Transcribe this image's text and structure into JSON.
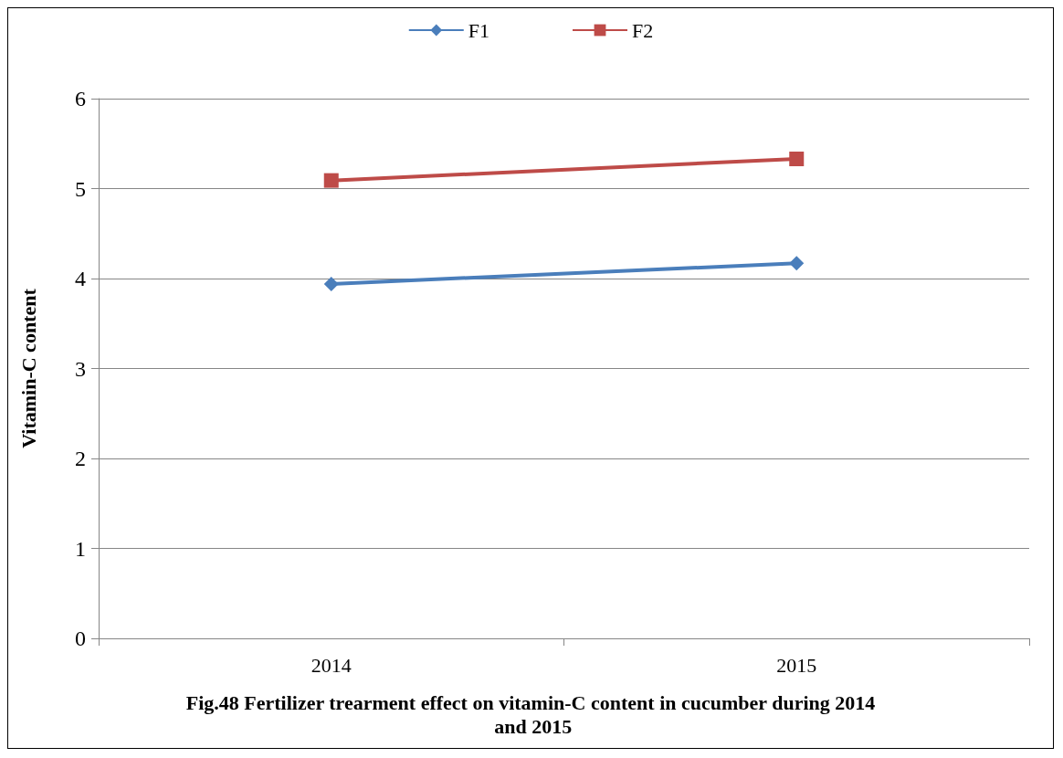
{
  "chart_data": {
    "type": "line",
    "title": "Fig.48 Fertilizer trearment effect on vitamin-C content in cucumber during 2014 and 2015",
    "ylabel": "Vitamin-C content",
    "categories": [
      "2014",
      "2015"
    ],
    "series": [
      {
        "name": "F1",
        "color": "#4a7ebb",
        "marker": "diamond",
        "values": [
          3.94,
          4.17
        ]
      },
      {
        "name": "F2",
        "color": "#be4b48",
        "marker": "square",
        "values": [
          5.09,
          5.33
        ]
      }
    ],
    "ylim": [
      0,
      6
    ],
    "yticks": [
      0,
      1,
      2,
      3,
      4,
      5,
      6
    ],
    "grid": "y",
    "legend": "top"
  }
}
